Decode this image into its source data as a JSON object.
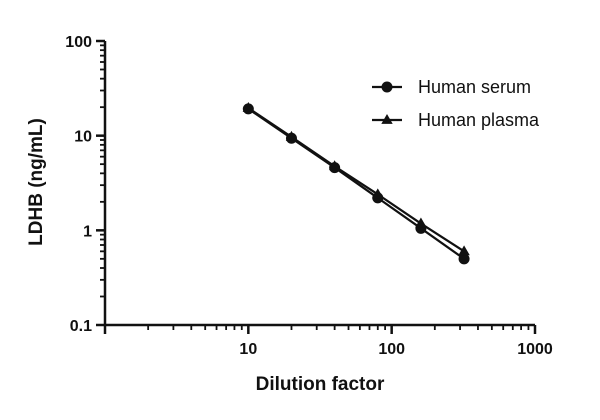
{
  "chart_data": {
    "type": "line",
    "title": "",
    "xlabel": "Dilution factor",
    "ylabel": "LDHB (ng/mL)",
    "x_scale": "log",
    "y_scale": "log",
    "xlim": [
      1,
      1000
    ],
    "ylim": [
      0.1,
      100
    ],
    "x_ticks": [
      "10",
      "100",
      "1000"
    ],
    "y_ticks": [
      "0.1",
      "1",
      "10",
      "100"
    ],
    "x": [
      10,
      20,
      40,
      80,
      160,
      320
    ],
    "series": [
      {
        "name": "Human serum",
        "marker": "circle",
        "values": [
          19.2,
          9.4,
          4.6,
          2.2,
          1.05,
          0.5
        ]
      },
      {
        "name": "Human plasma",
        "marker": "triangle",
        "values": [
          19.6,
          9.7,
          4.75,
          2.4,
          1.18,
          0.6
        ]
      }
    ],
    "legend_position": "top-right",
    "grid": false,
    "colors": {
      "series": "#111111"
    }
  }
}
